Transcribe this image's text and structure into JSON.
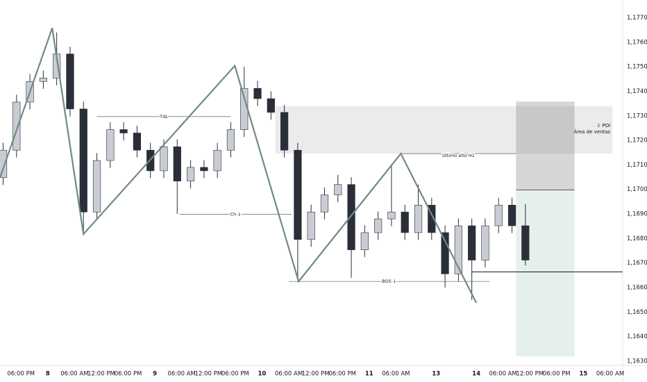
{
  "chart_data": {
    "type": "candlestick",
    "x": [
      -4,
      -1,
      2,
      5,
      8,
      11,
      14,
      17,
      20,
      23,
      26,
      29,
      32,
      35,
      38,
      41,
      44,
      47,
      50,
      53,
      56,
      59,
      62,
      65,
      68,
      71,
      74,
      77,
      80,
      83,
      86,
      89,
      92,
      95,
      98,
      101,
      104,
      107,
      110,
      113
    ],
    "open": [
      1.17048,
      1.1716,
      1.17356,
      1.1744,
      1.17454,
      1.17552,
      1.17328,
      1.16908,
      1.17118,
      1.17244,
      1.1723,
      1.1716,
      1.17076,
      1.17174,
      1.17034,
      1.1709,
      1.17076,
      1.1716,
      1.17244,
      1.17412,
      1.1737,
      1.17314,
      1.1716,
      1.16796,
      1.16908,
      1.16978,
      1.1702,
      1.16754,
      1.16824,
      1.1688,
      1.16908,
      1.16824,
      1.16936,
      1.16824,
      1.16656,
      1.16852,
      1.16712,
      1.16852,
      1.16936,
      1.16852
    ],
    "high": [
      1.1719,
      1.17386,
      1.1747,
      1.17484,
      1.1764,
      1.17582,
      1.17358,
      1.17148,
      1.17274,
      1.17274,
      1.1726,
      1.1719,
      1.17204,
      1.17204,
      1.1712,
      1.1712,
      1.1719,
      1.17274,
      1.175,
      1.17442,
      1.174,
      1.17344,
      1.1719,
      1.16938,
      1.17008,
      1.1706,
      1.1705,
      1.16854,
      1.1691,
      1.171,
      1.16938,
      1.1702,
      1.16966,
      1.16854,
      1.16882,
      1.16882,
      1.16882,
      1.16966,
      1.16966,
      1.1694
    ],
    "low": [
      1.17018,
      1.1713,
      1.17326,
      1.1741,
      1.17424,
      1.17298,
      1.1682,
      1.16878,
      1.17088,
      1.172,
      1.1713,
      1.17046,
      1.17046,
      1.169,
      1.17004,
      1.17046,
      1.17046,
      1.1713,
      1.17214,
      1.1734,
      1.17284,
      1.1713,
      1.1663,
      1.16766,
      1.16878,
      1.16948,
      1.1664,
      1.16724,
      1.16794,
      1.1685,
      1.16794,
      1.16794,
      1.16794,
      1.166,
      1.16626,
      1.1655,
      1.16682,
      1.16822,
      1.16822,
      1.1669
    ],
    "close": [
      1.1716,
      1.17356,
      1.1744,
      1.17454,
      1.17552,
      1.17328,
      1.16908,
      1.17118,
      1.17244,
      1.1723,
      1.1716,
      1.17076,
      1.17174,
      1.17034,
      1.1709,
      1.17076,
      1.1716,
      1.17244,
      1.17412,
      1.1737,
      1.17314,
      1.1716,
      1.16796,
      1.16908,
      1.16978,
      1.1702,
      1.16754,
      1.16824,
      1.1688,
      1.16908,
      1.16824,
      1.16936,
      1.16824,
      1.16656,
      1.16852,
      1.16712,
      1.16852,
      1.16936,
      1.16852,
      1.16712
    ],
    "up_color": "#c9ccd3",
    "down_color": "#2a2e39",
    "xlim": [
      -4.7,
      134.8
    ],
    "xticks": [
      {
        "value": 0,
        "label": "06:00 PM"
      },
      {
        "value": 6,
        "label": "8"
      },
      {
        "value": 12,
        "label": "06:00 AM"
      },
      {
        "value": 18,
        "label": "12:00 PM"
      },
      {
        "value": 24,
        "label": "06:00 PM"
      },
      {
        "value": 30,
        "label": "9"
      },
      {
        "value": 36,
        "label": "06:00 AM"
      },
      {
        "value": 42,
        "label": "12:00 PM"
      },
      {
        "value": 48,
        "label": "06:00 PM"
      },
      {
        "value": 54,
        "label": "10"
      },
      {
        "value": 60,
        "label": "06:00 AM"
      },
      {
        "value": 66,
        "label": "12:00 PM"
      },
      {
        "value": 72,
        "label": "06:00 PM"
      },
      {
        "value": 78,
        "label": "11"
      },
      {
        "value": 84,
        "label": "06:00 AM"
      },
      {
        "value": 93,
        "label": "13"
      },
      {
        "value": 102,
        "label": "14"
      },
      {
        "value": 108,
        "label": "06:00 AM"
      },
      {
        "value": 114,
        "label": "12:00 PM"
      },
      {
        "value": 120,
        "label": "06:00 PM"
      },
      {
        "value": 126,
        "label": "15"
      },
      {
        "value": 132,
        "label": "06:00 AM"
      }
    ],
    "ylim": [
      1.16286,
      1.17772
    ],
    "yticks": [
      {
        "value": 1.177,
        "label": "1,17700"
      },
      {
        "value": 1.176,
        "label": "1,17600"
      },
      {
        "value": 1.175,
        "label": "1,17500"
      },
      {
        "value": 1.174,
        "label": "1,17400"
      },
      {
        "value": 1.173,
        "label": "1,17300"
      },
      {
        "value": 1.172,
        "label": "1,17200"
      },
      {
        "value": 1.171,
        "label": "1,17100"
      },
      {
        "value": 1.17,
        "label": "1,17000"
      },
      {
        "value": 1.169,
        "label": "1,16900"
      },
      {
        "value": 1.168,
        "label": "1,16800"
      },
      {
        "value": 1.167,
        "label": "1,16700"
      },
      {
        "value": 1.166,
        "label": "1,16600"
      },
      {
        "value": 1.165,
        "label": "1,16500"
      },
      {
        "value": 1.164,
        "label": "1,16400"
      },
      {
        "value": 1.163,
        "label": "1,16300"
      }
    ],
    "zigzag": {
      "color": "#6f8a82",
      "x": [
        -4.7,
        7,
        14,
        47.9,
        62.2,
        85.1,
        102
      ],
      "values": [
        1.17048,
        1.17658,
        1.16818,
        1.17504,
        1.16625,
        1.17146,
        1.16538
      ]
    },
    "levels": [
      {
        "label": "TdL",
        "x": [
          17,
          47
        ],
        "value": 1.17297
      },
      {
        "label": "Ch ↓",
        "x": [
          35.6,
          60.6
        ],
        "value": 1.16899
      },
      {
        "label": "BOS ↓",
        "x": [
          60,
          105
        ],
        "value": 1.16625
      },
      {
        "label": "Último alto H1",
        "x": [
          85,
          111
        ],
        "value": 1.17146
      }
    ],
    "zone": {
      "label": "⇩ POI",
      "sublabel": "Área de ventas",
      "x": [
        57,
        132.5
      ],
      "top": 1.17339,
      "bottom": 1.17146
    },
    "position": {
      "x": [
        110.9,
        124
      ],
      "top": 1.17358,
      "entry": 1.16998,
      "bottom": 1.1632
    },
    "price_line": {
      "x": [
        101,
        134.8
      ],
      "value": 1.16664
    }
  }
}
